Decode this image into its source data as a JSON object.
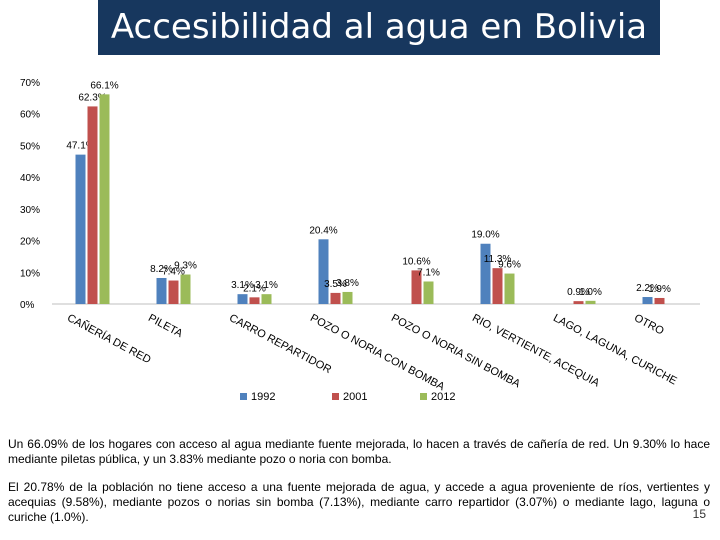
{
  "slide": {
    "title": "Accesibilidad al agua en Bolivia",
    "paragraph_1": "Un 66.09% de los hogares con acceso al agua mediante fuente mejorada, lo hacen a través de cañería de red. Un 9.30% lo hace mediante piletas pública, y un 3.83% mediante pozo o noria con bomba.",
    "paragraph_2": "El 20.78% de la población no tiene acceso a una fuente mejorada de agua, y accede a agua proveniente de ríos, vertientes y acequias (9.58%), mediante pozos o norias sin bomba (7.13%), mediante carro repartidor (3.07%) o mediante lago, laguna o curiche (1.0%).",
    "page_number": "15"
  },
  "chart_data": {
    "type": "bar",
    "title": "",
    "xlabel": "",
    "ylabel": "",
    "ylim": [
      0,
      70
    ],
    "yticks": [
      "0%",
      "10%",
      "20%",
      "30%",
      "40%",
      "50%",
      "60%",
      "70%"
    ],
    "grid": false,
    "legend_position": "bottom",
    "categories": [
      "CAÑERÍA DE RED",
      "PILETA",
      "CARRO REPARTIDOR",
      "POZO O NORIA CON BOMBA",
      "POZO O NORIA SIN BOMBA",
      "RIO, VERTIENTE, ACEQUIA",
      "LAGO, LAGUNA, CURICHE",
      "OTRO"
    ],
    "series": [
      {
        "name": "1992",
        "color": "#4f81bd",
        "values": [
          47.1,
          8.2,
          3.1,
          20.4,
          null,
          19.0,
          null,
          2.2
        ],
        "labels": [
          "47.1%",
          "8.2%",
          "3.1%",
          "20.4%",
          "",
          "19.0%",
          "",
          "2.2%"
        ]
      },
      {
        "name": "2001",
        "color": "#c0504d",
        "values": [
          62.3,
          7.4,
          2.1,
          3.5,
          10.6,
          11.3,
          0.9,
          1.9
        ],
        "labels": [
          "62.3%",
          "7.4%",
          "2.1%",
          "3.5%",
          "10.6%",
          "11.3%",
          "0.9%",
          "1.9%"
        ]
      },
      {
        "name": "2012",
        "color": "#9bbb59",
        "values": [
          66.1,
          9.3,
          3.1,
          3.8,
          7.1,
          9.6,
          1.0,
          null
        ],
        "labels": [
          "66.1%",
          "9.3%",
          "3.1%",
          "3.8%",
          "7.1%",
          "9.6%",
          "1.0%",
          ""
        ]
      }
    ]
  }
}
